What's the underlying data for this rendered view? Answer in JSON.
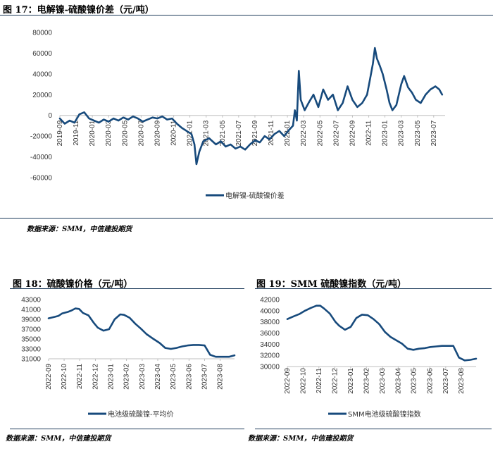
{
  "colors": {
    "series": "#174a7c",
    "rule": "#1f3d5c",
    "axis": "#bfbfbf"
  },
  "fig17": {
    "title": "图 17：电解镍-硫酸镍价差（元/吨）",
    "source": "数据来源：SMM，中信建投期货"
  },
  "fig18": {
    "title": "图 18：硫酸镍价格（元/吨）",
    "source": "数据来源：SMM，中信建投期货"
  },
  "fig19": {
    "title": "图 19：SMM 硫酸镍指数（元/吨）",
    "source": "数据来源：SMM，中信建投期货"
  },
  "chart_data": [
    {
      "id": "fig17",
      "type": "line",
      "title": "电解镍-硫酸镍价差（元/吨）",
      "ylim": [
        -60000,
        80000
      ],
      "yticks": [
        -60000,
        -40000,
        -20000,
        0,
        20000,
        40000,
        60000,
        80000
      ],
      "xlim": [
        2019.75,
        2023.7
      ],
      "xticks": [
        {
          "label": "2019-09",
          "t": 2019.75
        },
        {
          "label": "2019-11",
          "t": 2019.917
        },
        {
          "label": "2020-01",
          "t": 2020.083
        },
        {
          "label": "2020-03",
          "t": 2020.25
        },
        {
          "label": "2020-05",
          "t": 2020.417
        },
        {
          "label": "2020-07",
          "t": 2020.583
        },
        {
          "label": "2020-09",
          "t": 2020.75
        },
        {
          "label": "2020-11",
          "t": 2020.917
        },
        {
          "label": "2021-01",
          "t": 2021.083
        },
        {
          "label": "2021-03",
          "t": 2021.25
        },
        {
          "label": "2021-05",
          "t": 2021.417
        },
        {
          "label": "2021-07",
          "t": 2021.583
        },
        {
          "label": "2021-09",
          "t": 2021.75
        },
        {
          "label": "2021-11",
          "t": 2021.917
        },
        {
          "label": "2022-01",
          "t": 2022.083
        },
        {
          "label": "2022-03",
          "t": 2022.25
        },
        {
          "label": "2022-05",
          "t": 2022.417
        },
        {
          "label": "2022-07",
          "t": 2022.583
        },
        {
          "label": "2022-09",
          "t": 2022.75
        },
        {
          "label": "2022-11",
          "t": 2022.917
        },
        {
          "label": "2023-01",
          "t": 2023.083
        },
        {
          "label": "2023-03",
          "t": 2023.25
        },
        {
          "label": "2023-05",
          "t": 2023.417
        },
        {
          "label": "2023-07",
          "t": 2023.583
        }
      ],
      "series": [
        {
          "name": "电解镍-硫酸镍价差",
          "x": [
            2019.75,
            2019.8,
            2019.85,
            2019.9,
            2019.95,
            2020.0,
            2020.05,
            2020.1,
            2020.15,
            2020.2,
            2020.25,
            2020.3,
            2020.35,
            2020.4,
            2020.45,
            2020.5,
            2020.55,
            2020.6,
            2020.65,
            2020.7,
            2020.75,
            2020.8,
            2020.85,
            2020.9,
            2020.95,
            2021.0,
            2021.05,
            2021.1,
            2021.13,
            2021.15,
            2021.18,
            2021.22,
            2021.28,
            2021.35,
            2021.4,
            2021.45,
            2021.5,
            2021.55,
            2021.6,
            2021.65,
            2021.7,
            2021.75,
            2021.8,
            2021.85,
            2021.9,
            2021.95,
            2022.0,
            2022.05,
            2022.1,
            2022.14,
            2022.16,
            2022.18,
            2022.2,
            2022.22,
            2022.26,
            2022.3,
            2022.35,
            2022.4,
            2022.45,
            2022.5,
            2022.55,
            2022.6,
            2022.65,
            2022.7,
            2022.75,
            2022.8,
            2022.85,
            2022.9,
            2022.93,
            2022.96,
            2022.98,
            2023.0,
            2023.03,
            2023.06,
            2023.1,
            2023.13,
            2023.16,
            2023.2,
            2023.25,
            2023.28,
            2023.32,
            2023.36,
            2023.4,
            2023.45,
            2023.5,
            2023.55,
            2023.6,
            2023.64,
            2023.67
          ],
          "values": [
            -3000,
            -8000,
            -5000,
            -7000,
            1000,
            3000,
            -3000,
            -5000,
            -7000,
            -4000,
            -6000,
            -3000,
            -5000,
            -2000,
            -4000,
            -1000,
            -3000,
            -6000,
            -4000,
            -2000,
            -3000,
            -1000,
            -4000,
            -3000,
            -8000,
            -12000,
            -15000,
            -18000,
            -28000,
            -47000,
            -35000,
            -25000,
            -22000,
            -28000,
            -25000,
            -30000,
            -28000,
            -32000,
            -30000,
            -33000,
            -28000,
            -24000,
            -26000,
            -20000,
            -23000,
            -18000,
            -15000,
            -20000,
            -14000,
            -10000,
            5000,
            -5000,
            43000,
            15000,
            5000,
            12000,
            20000,
            8000,
            25000,
            15000,
            20000,
            5000,
            12000,
            28000,
            15000,
            8000,
            12000,
            20000,
            35000,
            50000,
            65000,
            55000,
            48000,
            40000,
            25000,
            12000,
            5000,
            10000,
            30000,
            38000,
            27000,
            22000,
            15000,
            12000,
            20000,
            25000,
            28000,
            25000,
            20000
          ]
        }
      ]
    },
    {
      "id": "fig18",
      "type": "line",
      "title": "硫酸镍价格（元/吨）",
      "ylim": [
        31000,
        43000
      ],
      "yticks": [
        31000,
        33000,
        35000,
        37000,
        39000,
        41000,
        43000
      ],
      "xlim": [
        2022.667,
        2023.66
      ],
      "xticks": [
        {
          "label": "2022-09",
          "t": 2022.667
        },
        {
          "label": "2022-10",
          "t": 2022.75
        },
        {
          "label": "2022-11",
          "t": 2022.833
        },
        {
          "label": "2022-12",
          "t": 2022.917
        },
        {
          "label": "2023-01",
          "t": 2023.0
        },
        {
          "label": "2023-02",
          "t": 2023.083
        },
        {
          "label": "2023-03",
          "t": 2023.167
        },
        {
          "label": "2023-04",
          "t": 2023.25
        },
        {
          "label": "2023-05",
          "t": 2023.333
        },
        {
          "label": "2023-06",
          "t": 2023.417
        },
        {
          "label": "2023-07",
          "t": 2023.5
        },
        {
          "label": "2023-08",
          "t": 2023.583
        }
      ],
      "series": [
        {
          "name": "电池级硫酸镍-平均价",
          "x": [
            2022.667,
            2022.7,
            2022.72,
            2022.74,
            2022.77,
            2022.79,
            2022.81,
            2022.83,
            2022.85,
            2022.88,
            2022.91,
            2022.93,
            2022.96,
            2022.99,
            2023.02,
            2023.05,
            2023.07,
            2023.1,
            2023.13,
            2023.16,
            2023.19,
            2023.22,
            2023.26,
            2023.29,
            2023.32,
            2023.35,
            2023.38,
            2023.41,
            2023.44,
            2023.47,
            2023.5,
            2023.53,
            2023.56,
            2023.6,
            2023.63,
            2023.66
          ],
          "values": [
            39200,
            39500,
            39700,
            40200,
            40500,
            40800,
            41200,
            41100,
            40300,
            39800,
            38200,
            37300,
            36700,
            37000,
            39000,
            40000,
            39900,
            39300,
            38100,
            37100,
            36000,
            35200,
            34200,
            33200,
            33000,
            33200,
            33500,
            33700,
            33800,
            33800,
            33700,
            31800,
            31400,
            31400,
            31400,
            31700
          ]
        }
      ]
    },
    {
      "id": "fig19",
      "type": "line",
      "title": "SMM 硫酸镍指数（元/吨）",
      "ylim": [
        30000,
        42000
      ],
      "yticks": [
        30000,
        32000,
        34000,
        36000,
        38000,
        40000,
        42000
      ],
      "xlim": [
        2022.667,
        2023.66
      ],
      "xticks": [
        {
          "label": "2022-09",
          "t": 2022.667
        },
        {
          "label": "2022-10",
          "t": 2022.75
        },
        {
          "label": "2022-11",
          "t": 2022.833
        },
        {
          "label": "2022-12",
          "t": 2022.917
        },
        {
          "label": "2023-01",
          "t": 2023.0
        },
        {
          "label": "2023-02",
          "t": 2023.083
        },
        {
          "label": "2023-03",
          "t": 2023.167
        },
        {
          "label": "2023-04",
          "t": 2023.25
        },
        {
          "label": "2023-05",
          "t": 2023.333
        },
        {
          "label": "2023-06",
          "t": 2023.417
        },
        {
          "label": "2023-07",
          "t": 2023.5
        },
        {
          "label": "2023-08",
          "t": 2023.583
        }
      ],
      "series": [
        {
          "name": "SMM电池级硫酸镍指数",
          "x": [
            2022.667,
            2022.7,
            2022.73,
            2022.76,
            2022.79,
            2022.82,
            2022.84,
            2022.86,
            2022.89,
            2022.92,
            2022.94,
            2022.97,
            2023.0,
            2023.03,
            2023.06,
            2023.09,
            2023.12,
            2023.15,
            2023.18,
            2023.21,
            2023.24,
            2023.27,
            2023.3,
            2023.33,
            2023.36,
            2023.39,
            2023.42,
            2023.45,
            2023.48,
            2023.51,
            2023.54,
            2023.57,
            2023.6,
            2023.63,
            2023.66
          ],
          "values": [
            38500,
            39000,
            39400,
            40000,
            40500,
            40900,
            40900,
            40400,
            39500,
            38000,
            37300,
            36600,
            37100,
            38700,
            39300,
            39200,
            38500,
            37600,
            36200,
            35300,
            34700,
            34100,
            33200,
            33000,
            33200,
            33300,
            33500,
            33600,
            33700,
            33700,
            33700,
            31600,
            31100,
            31200,
            31400
          ]
        }
      ]
    }
  ]
}
